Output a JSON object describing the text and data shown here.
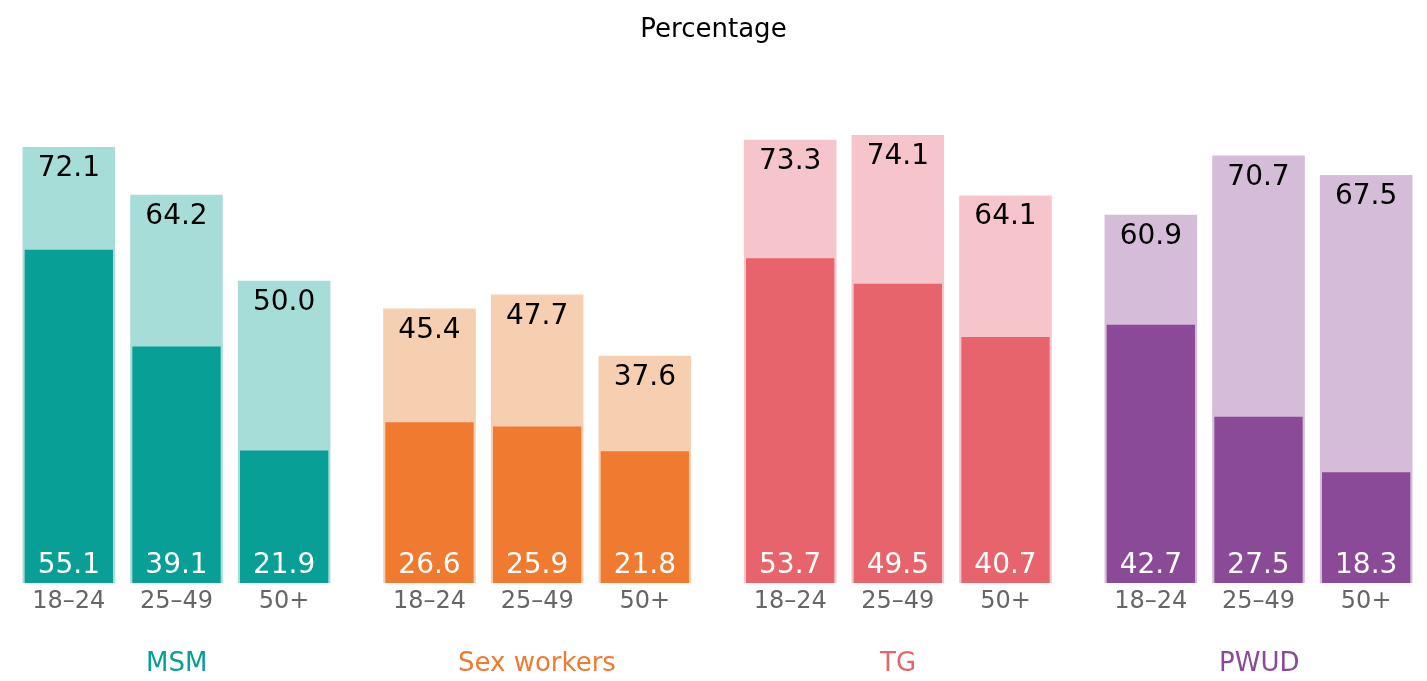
{
  "chart_data": {
    "type": "bar",
    "title": "Percentage",
    "categories": [
      "18–24",
      "25–49",
      "50+",
      "18–24",
      "25–49",
      "50+",
      "18–24",
      "25–49",
      "50+",
      "18–24",
      "25–49",
      "50+"
    ],
    "annotations": [
      "MSM",
      "Sex workers",
      "TG",
      "PWUD"
    ],
    "series": [
      {
        "colors": [
          "#a7ddd8",
          "#a7ddd8",
          "#a7ddd8",
          "#f5cfb0",
          "#f5cfb0",
          "#f5cfb0",
          "#f5c5cb",
          "#f5c5cb",
          "#f5c5cb",
          "#d5bcd8",
          "#d5bcd8",
          "#d5bcd8"
        ],
        "values": [
          72.1,
          64.2,
          50.0,
          45.4,
          47.7,
          37.6,
          73.3,
          74.1,
          64.1,
          60.9,
          70.7,
          67.5
        ],
        "value_labels": [
          "72.1",
          "64.2",
          "50.0",
          "45.4",
          "47.7",
          "37.6",
          "73.3",
          "74.1",
          "64.1",
          "60.9",
          "70.7",
          "67.5"
        ]
      },
      {
        "colors": [
          "#079f96",
          "#079f96",
          "#079f96",
          "#ef7a30",
          "#ef7a30",
          "#ef7a30",
          "#e8646c",
          "#e8646c",
          "#e8646c",
          "#8a4a97",
          "#8a4a97",
          "#8a4a97"
        ],
        "values": [
          55.1,
          39.1,
          21.9,
          26.6,
          25.9,
          21.8,
          53.7,
          49.5,
          40.7,
          42.7,
          27.5,
          18.3
        ],
        "value_labels": [
          "55.1",
          "39.1",
          "21.9",
          "26.6",
          "25.9",
          "21.8",
          "53.7",
          "49.5",
          "40.7",
          "42.7",
          "27.5",
          "18.3"
        ]
      }
    ]
  }
}
